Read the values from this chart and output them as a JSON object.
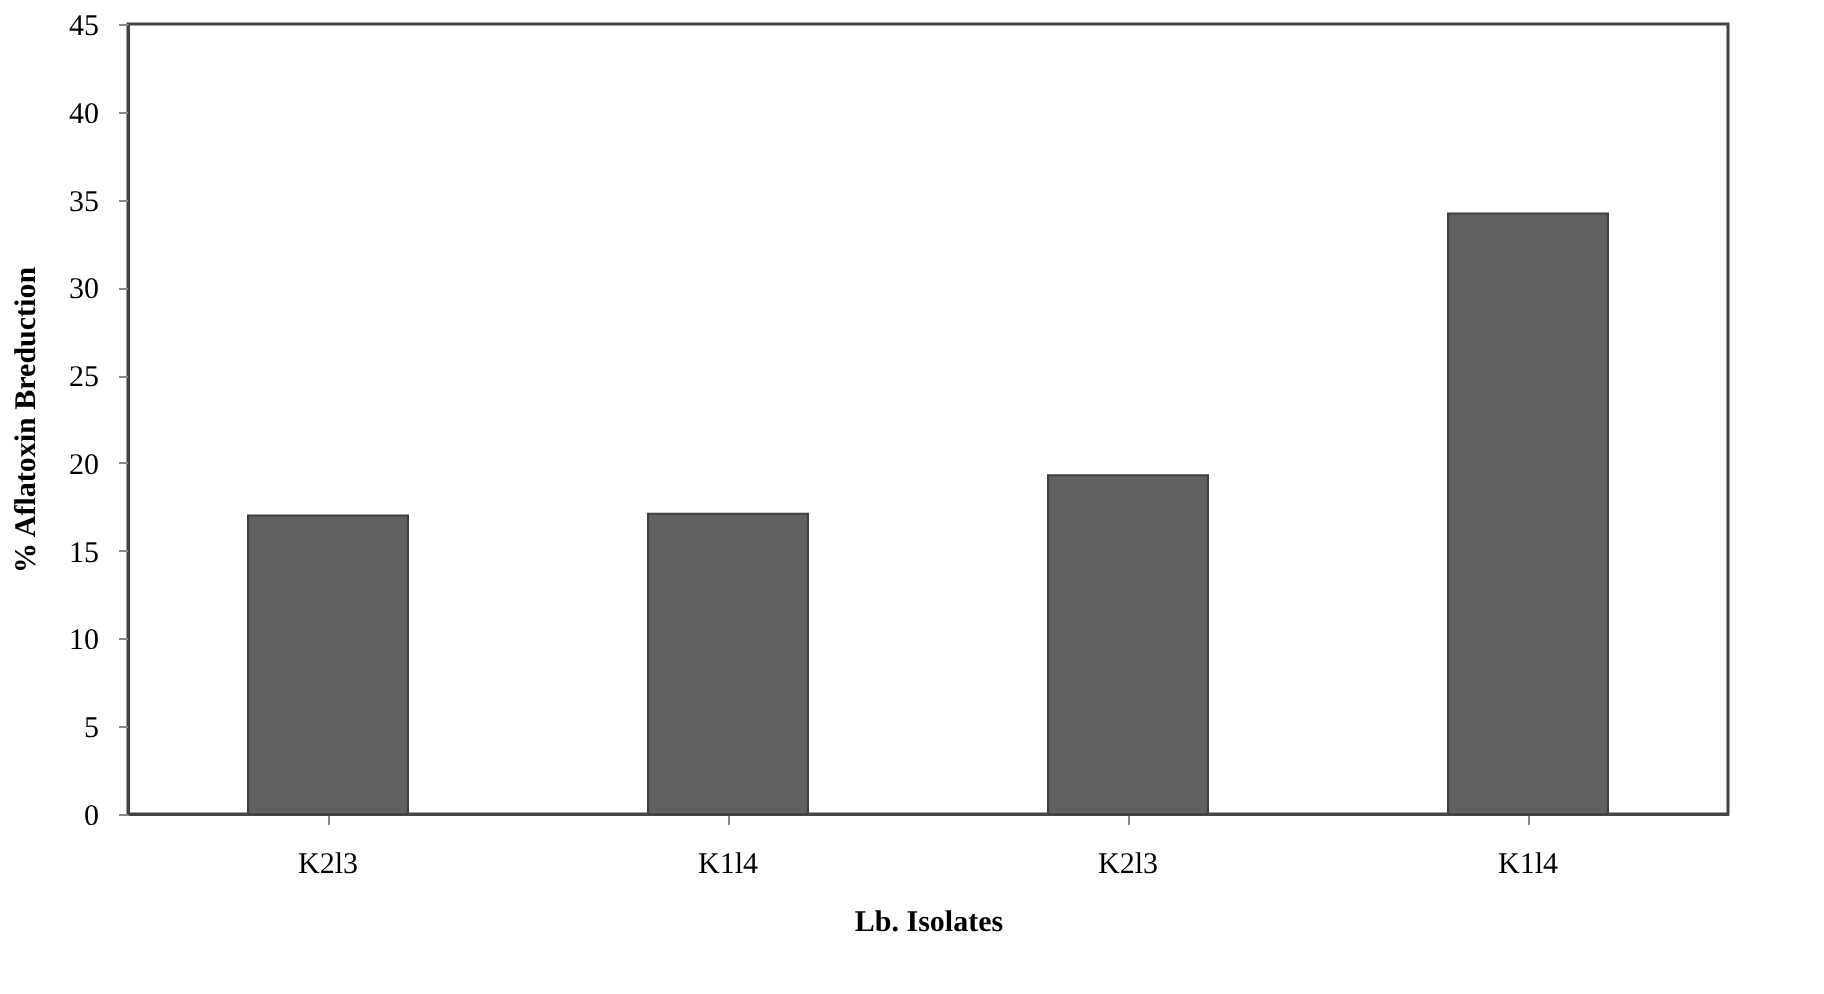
{
  "chart_data": {
    "type": "bar",
    "xlabel": "Lb. Isolates",
    "ylabel": "% Aflatoxin Breduction",
    "categories": [
      "K2l3",
      "K1l4",
      "K2l3",
      "K1l4"
    ],
    "values": [
      17.0,
      17.1,
      19.3,
      34.2
    ],
    "color": "#606060",
    "ylim": [
      0,
      45
    ],
    "yticks": [
      0,
      5,
      10,
      15,
      20,
      25,
      30,
      35,
      40,
      45
    ],
    "grid": false
  }
}
